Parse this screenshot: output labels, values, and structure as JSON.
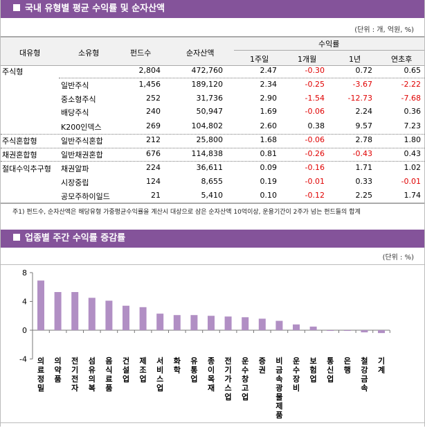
{
  "table_section": {
    "title": "국내 유형별 평균 수익률 및 순자산액",
    "unit": "(단위 : 개, 억원, %)",
    "headers": {
      "major": "대유형",
      "minor": "소유형",
      "count": "펀드수",
      "aum": "순자산액",
      "returns": "수익률",
      "w1": "1주일",
      "m1": "1개월",
      "y1": "1년",
      "ytd": "연초후"
    },
    "rows": [
      {
        "major": "주식형",
        "minor": "",
        "count": "2,804",
        "aum": "472,760",
        "w1": "2.47",
        "m1": "-0.30",
        "y1": "0.72",
        "ytd": "0.65"
      },
      {
        "major": "",
        "minor": "일반주식",
        "count": "1,456",
        "aum": "189,120",
        "w1": "2.34",
        "m1": "-0.25",
        "y1": "-3.67",
        "ytd": "-2.22"
      },
      {
        "major": "",
        "minor": "중소형주식",
        "count": "252",
        "aum": "31,736",
        "w1": "2.90",
        "m1": "-1.54",
        "y1": "-12.73",
        "ytd": "-7.68"
      },
      {
        "major": "",
        "minor": "배당주식",
        "count": "240",
        "aum": "50,947",
        "w1": "1.69",
        "m1": "-0.06",
        "y1": "2.24",
        "ytd": "0.36"
      },
      {
        "major": "",
        "minor": "K200인덱스",
        "count": "269",
        "aum": "104,802",
        "w1": "2.60",
        "m1": "0.38",
        "y1": "9.57",
        "ytd": "7.23"
      },
      {
        "major": "주식혼합형",
        "minor": "일반주식혼합",
        "count": "212",
        "aum": "25,800",
        "w1": "1.68",
        "m1": "-0.06",
        "y1": "2.78",
        "ytd": "1.80"
      },
      {
        "major": "채권혼합형",
        "minor": "일반채권혼합",
        "count": "676",
        "aum": "114,838",
        "w1": "0.81",
        "m1": "-0.26",
        "y1": "-0.43",
        "ytd": "0.43"
      },
      {
        "major": "절대수익추구형",
        "minor": "채권알파",
        "count": "224",
        "aum": "36,611",
        "w1": "0.09",
        "m1": "-0.16",
        "y1": "1.71",
        "ytd": "1.02"
      },
      {
        "major": "",
        "minor": "시장중립",
        "count": "124",
        "aum": "8,655",
        "w1": "0.19",
        "m1": "-0.01",
        "y1": "0.33",
        "ytd": "-0.01"
      },
      {
        "major": "",
        "minor": "공모주하이일드",
        "count": "21",
        "aum": "5,410",
        "w1": "0.10",
        "m1": "-0.12",
        "y1": "2.25",
        "ytd": "1.74"
      }
    ],
    "note": "주1) 펀드수, 순자산액은 해당유형 가중평균수익률을 계산시 대상으로 삼은 순자산액 10억이상, 운용기간이 2주가 넘는 펀드들의 합계",
    "negative_color": "#e00000"
  },
  "chart_section": {
    "title": "업종별 주간 수익률 증감률",
    "unit": "(단위 : %)"
  },
  "chart_data": {
    "type": "bar",
    "ylim": [
      -4,
      8
    ],
    "yticks": [
      "8",
      "4",
      "0",
      "-4"
    ],
    "grid": false,
    "bar_color": "#b18fc4",
    "categories": [
      "의료정밀",
      "의약품",
      "전기전자",
      "섬유의복",
      "음식료품",
      "건설업",
      "제조업",
      "서비스업",
      "화학",
      "유통업",
      "종이목재",
      "전기가스업",
      "운수창고업",
      "증권",
      "비금속광물제품",
      "운수장비",
      "보험업",
      "통신업",
      "은행",
      "철강금속",
      "기계"
    ],
    "values": [
      6.9,
      5.3,
      5.3,
      4.5,
      4.1,
      3.4,
      3.2,
      2.3,
      2.1,
      2.1,
      2.0,
      1.9,
      1.8,
      1.6,
      1.3,
      0.8,
      0.5,
      -0.1,
      -0.1,
      -0.3,
      -0.4
    ]
  }
}
